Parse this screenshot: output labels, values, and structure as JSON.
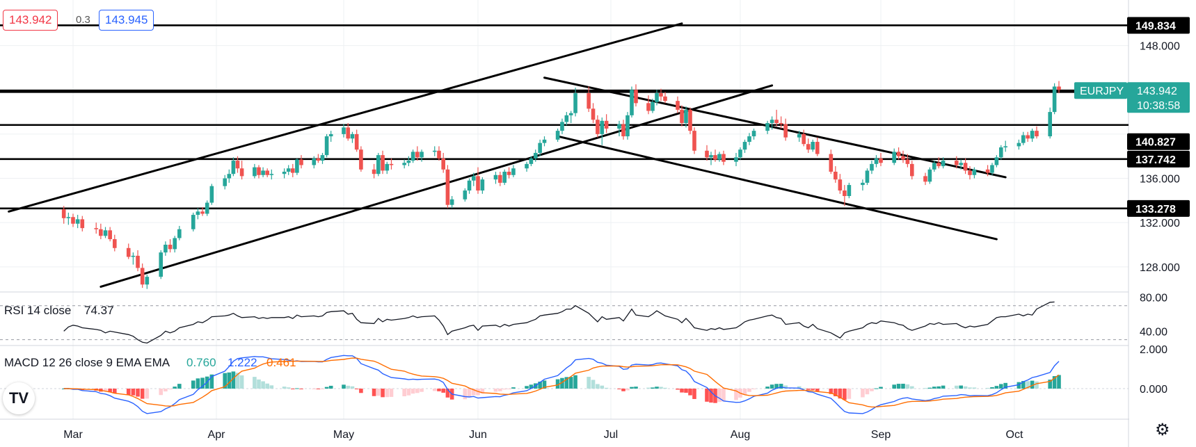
{
  "header": {
    "bid": "143.942",
    "spread": "0.3",
    "ask": "143.945"
  },
  "symbol_badge": {
    "symbol": "EURJPY",
    "price": "143.942",
    "countdown": "10:38:58",
    "color": "#26a69a"
  },
  "logo_text": "TV",
  "settings_icon": "gear-icon",
  "chart_data": {
    "type": "candlestick",
    "symbol": "EURJPY",
    "x_ticks": [
      "Mar",
      "Apr",
      "May",
      "Jun",
      "Jul",
      "Aug",
      "Sep",
      "Oct"
    ],
    "price_axis": {
      "ticks": [
        "148.000",
        "136.000",
        "132.000",
        "128.000"
      ],
      "range": [
        125.5,
        151.3
      ]
    },
    "colors": {
      "up": "#26a69a",
      "down": "#ef5350",
      "rsi": "#131722",
      "macd": "#2962ff",
      "signal": "#ff6d00",
      "hist_up_strong": "#26a69a",
      "hist_up_weak": "#b2dfdb",
      "hist_down_strong": "#ff5252",
      "hist_down_weak": "#ffcdd2"
    },
    "horizontal_levels": [
      "149.834",
      "143.806",
      "140.827",
      "137.742",
      "133.278"
    ],
    "current_price": "143.942",
    "trendlines": [
      {
        "name": "channel-upper",
        "from": [
          "Feb 15",
          133.0
        ],
        "to": [
          "Jul 18",
          150.0
        ]
      },
      {
        "name": "channel-lower",
        "from": [
          "Mar 7",
          126.2
        ],
        "to": [
          "Aug 8",
          144.4
        ]
      },
      {
        "name": "descending-upper",
        "from": [
          "Jun 16",
          145.1
        ],
        "to": [
          "Sep 29",
          136.1
        ]
      },
      {
        "name": "descending-lower",
        "from": [
          "Jun 19",
          139.8
        ],
        "to": [
          "Sep 27",
          130.5
        ]
      }
    ],
    "candles_ohlc": [
      [
        133.2,
        133.5,
        131.9,
        132.4
      ],
      [
        132.4,
        132.9,
        131.8,
        132.5
      ],
      [
        132.5,
        132.8,
        131.6,
        131.9
      ],
      [
        131.9,
        132.7,
        131.5,
        132.3
      ],
      [
        132.3,
        132.6,
        131.2,
        131.5
      ],
      [
        131.5,
        132.0,
        131.0,
        131.4
      ],
      [
        131.4,
        131.9,
        130.5,
        130.8
      ],
      [
        130.8,
        131.6,
        130.6,
        131.3
      ],
      [
        131.3,
        131.6,
        130.3,
        130.5
      ],
      [
        130.5,
        130.9,
        129.4,
        129.7
      ],
      [
        129.7,
        130.1,
        128.7,
        128.9
      ],
      [
        128.9,
        129.3,
        128.2,
        129.0
      ],
      [
        129.0,
        129.5,
        127.6,
        127.9
      ],
      [
        127.9,
        128.3,
        126.1,
        126.4
      ],
      [
        126.4,
        127.3,
        126.0,
        127.1
      ],
      [
        127.1,
        129.5,
        126.9,
        129.3
      ],
      [
        129.3,
        130.3,
        129.0,
        130.0
      ],
      [
        130.0,
        130.5,
        129.3,
        129.6
      ],
      [
        129.6,
        130.8,
        129.3,
        130.6
      ],
      [
        130.6,
        131.7,
        130.4,
        131.4
      ],
      [
        131.4,
        132.9,
        131.2,
        132.7
      ],
      [
        132.7,
        133.3,
        132.3,
        133.0
      ],
      [
        133.0,
        133.4,
        132.6,
        132.8
      ],
      [
        132.8,
        134.0,
        132.6,
        133.8
      ],
      [
        133.8,
        135.5,
        133.6,
        135.3
      ],
      [
        135.3,
        136.3,
        135.0,
        136.0
      ],
      [
        136.0,
        136.8,
        135.6,
        136.4
      ],
      [
        136.4,
        137.9,
        136.2,
        137.6
      ],
      [
        137.6,
        138.0,
        136.5,
        136.9
      ],
      [
        136.9,
        137.6,
        135.9,
        136.2
      ],
      [
        136.2,
        137.3,
        136.0,
        137.0
      ],
      [
        137.0,
        137.2,
        136.0,
        136.3
      ],
      [
        136.3,
        137.0,
        136.1,
        136.7
      ],
      [
        136.7,
        136.9,
        136.1,
        136.3
      ],
      [
        136.3,
        136.8,
        135.9,
        136.4
      ],
      [
        136.4,
        136.9,
        136.0,
        136.6
      ],
      [
        136.6,
        137.2,
        136.3,
        136.9
      ],
      [
        136.9,
        137.3,
        136.1,
        136.5
      ],
      [
        136.5,
        137.8,
        136.3,
        137.7
      ],
      [
        137.7,
        138.1,
        136.9,
        137.2
      ],
      [
        137.2,
        138.0,
        136.9,
        137.8
      ],
      [
        137.8,
        138.2,
        137.4,
        137.6
      ],
      [
        137.6,
        138.3,
        137.3,
        138.1
      ],
      [
        138.1,
        140.0,
        137.9,
        139.8
      ],
      [
        139.8,
        140.3,
        139.3,
        140.0
      ],
      [
        140.0,
        140.9,
        139.7,
        140.6
      ],
      [
        140.6,
        141.0,
        139.4,
        139.6
      ],
      [
        139.6,
        140.2,
        139.2,
        140.0
      ],
      [
        140.0,
        140.4,
        138.4,
        138.6
      ],
      [
        138.6,
        138.9,
        136.6,
        136.8
      ],
      [
        136.8,
        137.3,
        136.0,
        136.4
      ],
      [
        136.4,
        138.3,
        136.2,
        138.1
      ],
      [
        138.1,
        138.5,
        136.4,
        136.7
      ],
      [
        136.7,
        137.5,
        136.4,
        137.3
      ],
      [
        137.3,
        137.8,
        136.8,
        137.2
      ],
      [
        137.2,
        137.7,
        136.9,
        137.4
      ],
      [
        137.4,
        138.0,
        137.1,
        137.6
      ],
      [
        137.6,
        138.6,
        137.4,
        138.4
      ],
      [
        138.4,
        138.9,
        137.6,
        137.9
      ],
      [
        137.9,
        138.6,
        137.5,
        138.4
      ],
      [
        138.4,
        138.9,
        138.0,
        138.5
      ],
      [
        138.5,
        138.9,
        137.6,
        137.8
      ],
      [
        137.8,
        138.3,
        136.5,
        136.8
      ],
      [
        136.8,
        137.2,
        133.3,
        133.6
      ],
      [
        133.6,
        134.4,
        133.3,
        134.1
      ],
      [
        134.1,
        135.1,
        133.9,
        134.9
      ],
      [
        134.9,
        136.0,
        134.6,
        135.8
      ],
      [
        135.8,
        136.5,
        135.3,
        136.2
      ],
      [
        136.2,
        137.0,
        134.6,
        134.9
      ],
      [
        134.9,
        136.1,
        134.6,
        135.9
      ],
      [
        135.9,
        136.6,
        135.5,
        136.3
      ],
      [
        136.3,
        136.6,
        135.3,
        135.6
      ],
      [
        135.6,
        136.8,
        135.4,
        136.6
      ],
      [
        136.6,
        137.0,
        136.0,
        136.3
      ],
      [
        136.3,
        137.2,
        136.1,
        136.9
      ],
      [
        136.9,
        137.5,
        136.6,
        137.3
      ],
      [
        137.3,
        138.0,
        137.1,
        137.8
      ],
      [
        137.8,
        138.6,
        137.5,
        138.3
      ],
      [
        138.3,
        139.5,
        138.0,
        139.2
      ],
      [
        139.2,
        139.8,
        138.9,
        139.5
      ],
      [
        139.5,
        140.5,
        139.3,
        140.3
      ],
      [
        140.3,
        141.4,
        140.0,
        141.1
      ],
      [
        141.1,
        142.0,
        140.8,
        141.7
      ],
      [
        141.7,
        142.1,
        141.0,
        141.9
      ],
      [
        141.9,
        144.2,
        141.6,
        143.7
      ],
      [
        143.7,
        144.3,
        142.0,
        142.3
      ],
      [
        142.3,
        142.8,
        141.0,
        141.3
      ],
      [
        141.3,
        141.7,
        139.7,
        140.0
      ],
      [
        140.0,
        141.5,
        139.0,
        141.2
      ],
      [
        141.2,
        141.8,
        140.1,
        140.5
      ],
      [
        140.5,
        141.2,
        139.8,
        140.9
      ],
      [
        140.9,
        141.3,
        139.5,
        139.8
      ],
      [
        139.8,
        142.0,
        139.5,
        141.7
      ],
      [
        141.7,
        144.3,
        141.5,
        144.0
      ],
      [
        144.0,
        144.5,
        142.5,
        142.8
      ],
      [
        142.8,
        143.5,
        141.8,
        142.1
      ],
      [
        142.1,
        143.2,
        141.9,
        142.9
      ],
      [
        142.9,
        144.0,
        142.6,
        143.7
      ],
      [
        143.7,
        144.1,
        143.0,
        143.4
      ],
      [
        143.4,
        143.8,
        142.8,
        143.0
      ],
      [
        143.0,
        143.4,
        141.9,
        142.2
      ],
      [
        142.2,
        142.6,
        140.7,
        141.0
      ],
      [
        141.0,
        142.5,
        140.6,
        142.2
      ],
      [
        142.2,
        142.4,
        140.0,
        140.3
      ],
      [
        140.3,
        140.6,
        138.2,
        138.5
      ],
      [
        138.5,
        139.0,
        137.6,
        137.9
      ],
      [
        137.9,
        138.4,
        137.2,
        138.1
      ],
      [
        138.1,
        138.6,
        137.5,
        137.7
      ],
      [
        137.7,
        138.4,
        137.5,
        138.2
      ],
      [
        138.2,
        138.5,
        137.2,
        137.5
      ],
      [
        137.5,
        138.3,
        137.1,
        137.9
      ],
      [
        137.9,
        138.8,
        137.7,
        138.6
      ],
      [
        138.6,
        139.5,
        138.3,
        139.3
      ],
      [
        139.3,
        140.1,
        139.0,
        139.8
      ],
      [
        139.8,
        140.5,
        139.5,
        140.3
      ],
      [
        140.3,
        141.2,
        140.0,
        141.0
      ],
      [
        141.0,
        141.6,
        140.4,
        141.3
      ],
      [
        141.3,
        142.2,
        140.7,
        141.0
      ],
      [
        141.0,
        141.6,
        140.5,
        140.9
      ],
      [
        140.9,
        141.4,
        139.4,
        139.7
      ],
      [
        139.7,
        140.3,
        139.3,
        140.0
      ],
      [
        140.0,
        140.4,
        138.9,
        139.1
      ],
      [
        139.1,
        139.6,
        138.3,
        138.6
      ],
      [
        138.6,
        139.5,
        138.4,
        139.3
      ],
      [
        139.3,
        139.7,
        138.0,
        138.2
      ],
      [
        138.2,
        138.6,
        136.4,
        136.6
      ],
      [
        136.6,
        137.1,
        135.6,
        135.9
      ],
      [
        135.9,
        136.4,
        134.6,
        134.9
      ],
      [
        134.9,
        135.4,
        133.5,
        134.4
      ],
      [
        134.4,
        135.6,
        134.2,
        135.4
      ],
      [
        135.4,
        135.9,
        134.9,
        135.6
      ],
      [
        135.6,
        136.9,
        135.4,
        136.7
      ],
      [
        136.7,
        137.6,
        136.4,
        137.3
      ],
      [
        137.3,
        138.1,
        137.0,
        137.8
      ],
      [
        137.8,
        138.3,
        137.1,
        137.4
      ],
      [
        137.4,
        138.7,
        137.2,
        138.4
      ],
      [
        138.4,
        138.8,
        137.7,
        138.0
      ],
      [
        138.0,
        138.5,
        137.4,
        137.7
      ],
      [
        137.7,
        138.2,
        137.0,
        137.3
      ],
      [
        137.3,
        137.6,
        135.9,
        136.2
      ],
      [
        136.2,
        136.5,
        135.4,
        135.7
      ],
      [
        135.7,
        137.0,
        135.5,
        136.8
      ],
      [
        136.8,
        137.6,
        136.6,
        137.4
      ],
      [
        137.4,
        137.9,
        136.9,
        137.1
      ],
      [
        137.1,
        137.9,
        136.9,
        137.6
      ],
      [
        137.6,
        138.0,
        136.9,
        137.2
      ],
      [
        137.2,
        137.7,
        136.8,
        137.4
      ],
      [
        137.4,
        137.8,
        136.4,
        136.7
      ],
      [
        136.7,
        137.1,
        135.9,
        136.3
      ],
      [
        136.3,
        137.0,
        136.0,
        136.8
      ],
      [
        136.8,
        137.2,
        136.2,
        136.5
      ],
      [
        136.5,
        137.4,
        136.3,
        137.2
      ],
      [
        137.2,
        138.1,
        137.0,
        137.9
      ],
      [
        137.9,
        139.0,
        137.7,
        138.8
      ],
      [
        138.8,
        139.4,
        138.4,
        138.9
      ],
      [
        138.9,
        139.5,
        138.6,
        139.2
      ],
      [
        139.2,
        140.2,
        139.0,
        139.9
      ],
      [
        139.9,
        140.2,
        139.3,
        139.6
      ],
      [
        139.6,
        140.5,
        139.3,
        140.3
      ],
      [
        140.3,
        140.7,
        139.6,
        139.8
      ],
      [
        139.8,
        142.4,
        139.6,
        142.0
      ],
      [
        142.0,
        144.6,
        141.8,
        144.3
      ],
      [
        144.3,
        144.8,
        143.7,
        144.0
      ]
    ],
    "rsi": {
      "label": "RSI 14 close",
      "value": "74.37",
      "ticks": [
        "80.00",
        "40.00"
      ],
      "levels": [
        70,
        30
      ],
      "range": [
        20,
        85
      ],
      "values": [
        40,
        45,
        47,
        46,
        44,
        42,
        41,
        38,
        40,
        39,
        36,
        34,
        30,
        27,
        26,
        35,
        40,
        38,
        40,
        44,
        48,
        51,
        50,
        53,
        57,
        58,
        59,
        61,
        58,
        56,
        57,
        55,
        56,
        55,
        56,
        56,
        57,
        55,
        59,
        57,
        58,
        57,
        58,
        62,
        63,
        64,
        60,
        61,
        54,
        50,
        49,
        55,
        51,
        54,
        53,
        55,
        56,
        58,
        56,
        57,
        58,
        53,
        46,
        36,
        40,
        44,
        46,
        47,
        41,
        46,
        47,
        45,
        48,
        46,
        48,
        50,
        52,
        54,
        58,
        59,
        61,
        63,
        66,
        66,
        70,
        61,
        56,
        51,
        57,
        54,
        56,
        52,
        59,
        66,
        59,
        57,
        60,
        64,
        61,
        58,
        54,
        50,
        55,
        50,
        44,
        41,
        43,
        42,
        44,
        42,
        44,
        47,
        51,
        53,
        54,
        58,
        59,
        56,
        55,
        48,
        50,
        46,
        44,
        48,
        43,
        38,
        35,
        32,
        38,
        40,
        44,
        48,
        50,
        49,
        52,
        50,
        48,
        47,
        43,
        41,
        46,
        49,
        48,
        50,
        48,
        49,
        46,
        44,
        46,
        45,
        48,
        52,
        56,
        57,
        57,
        60,
        58,
        60,
        59,
        66,
        74,
        74.37
      ]
    },
    "macd": {
      "label": "MACD 12 26 close 9 EMA EMA",
      "hist": "0.760",
      "macd_value": "1.222",
      "signal_value": "0.461",
      "ticks": [
        "2.000",
        "0.000"
      ],
      "range": [
        -1.8,
        2.4
      ]
    }
  }
}
